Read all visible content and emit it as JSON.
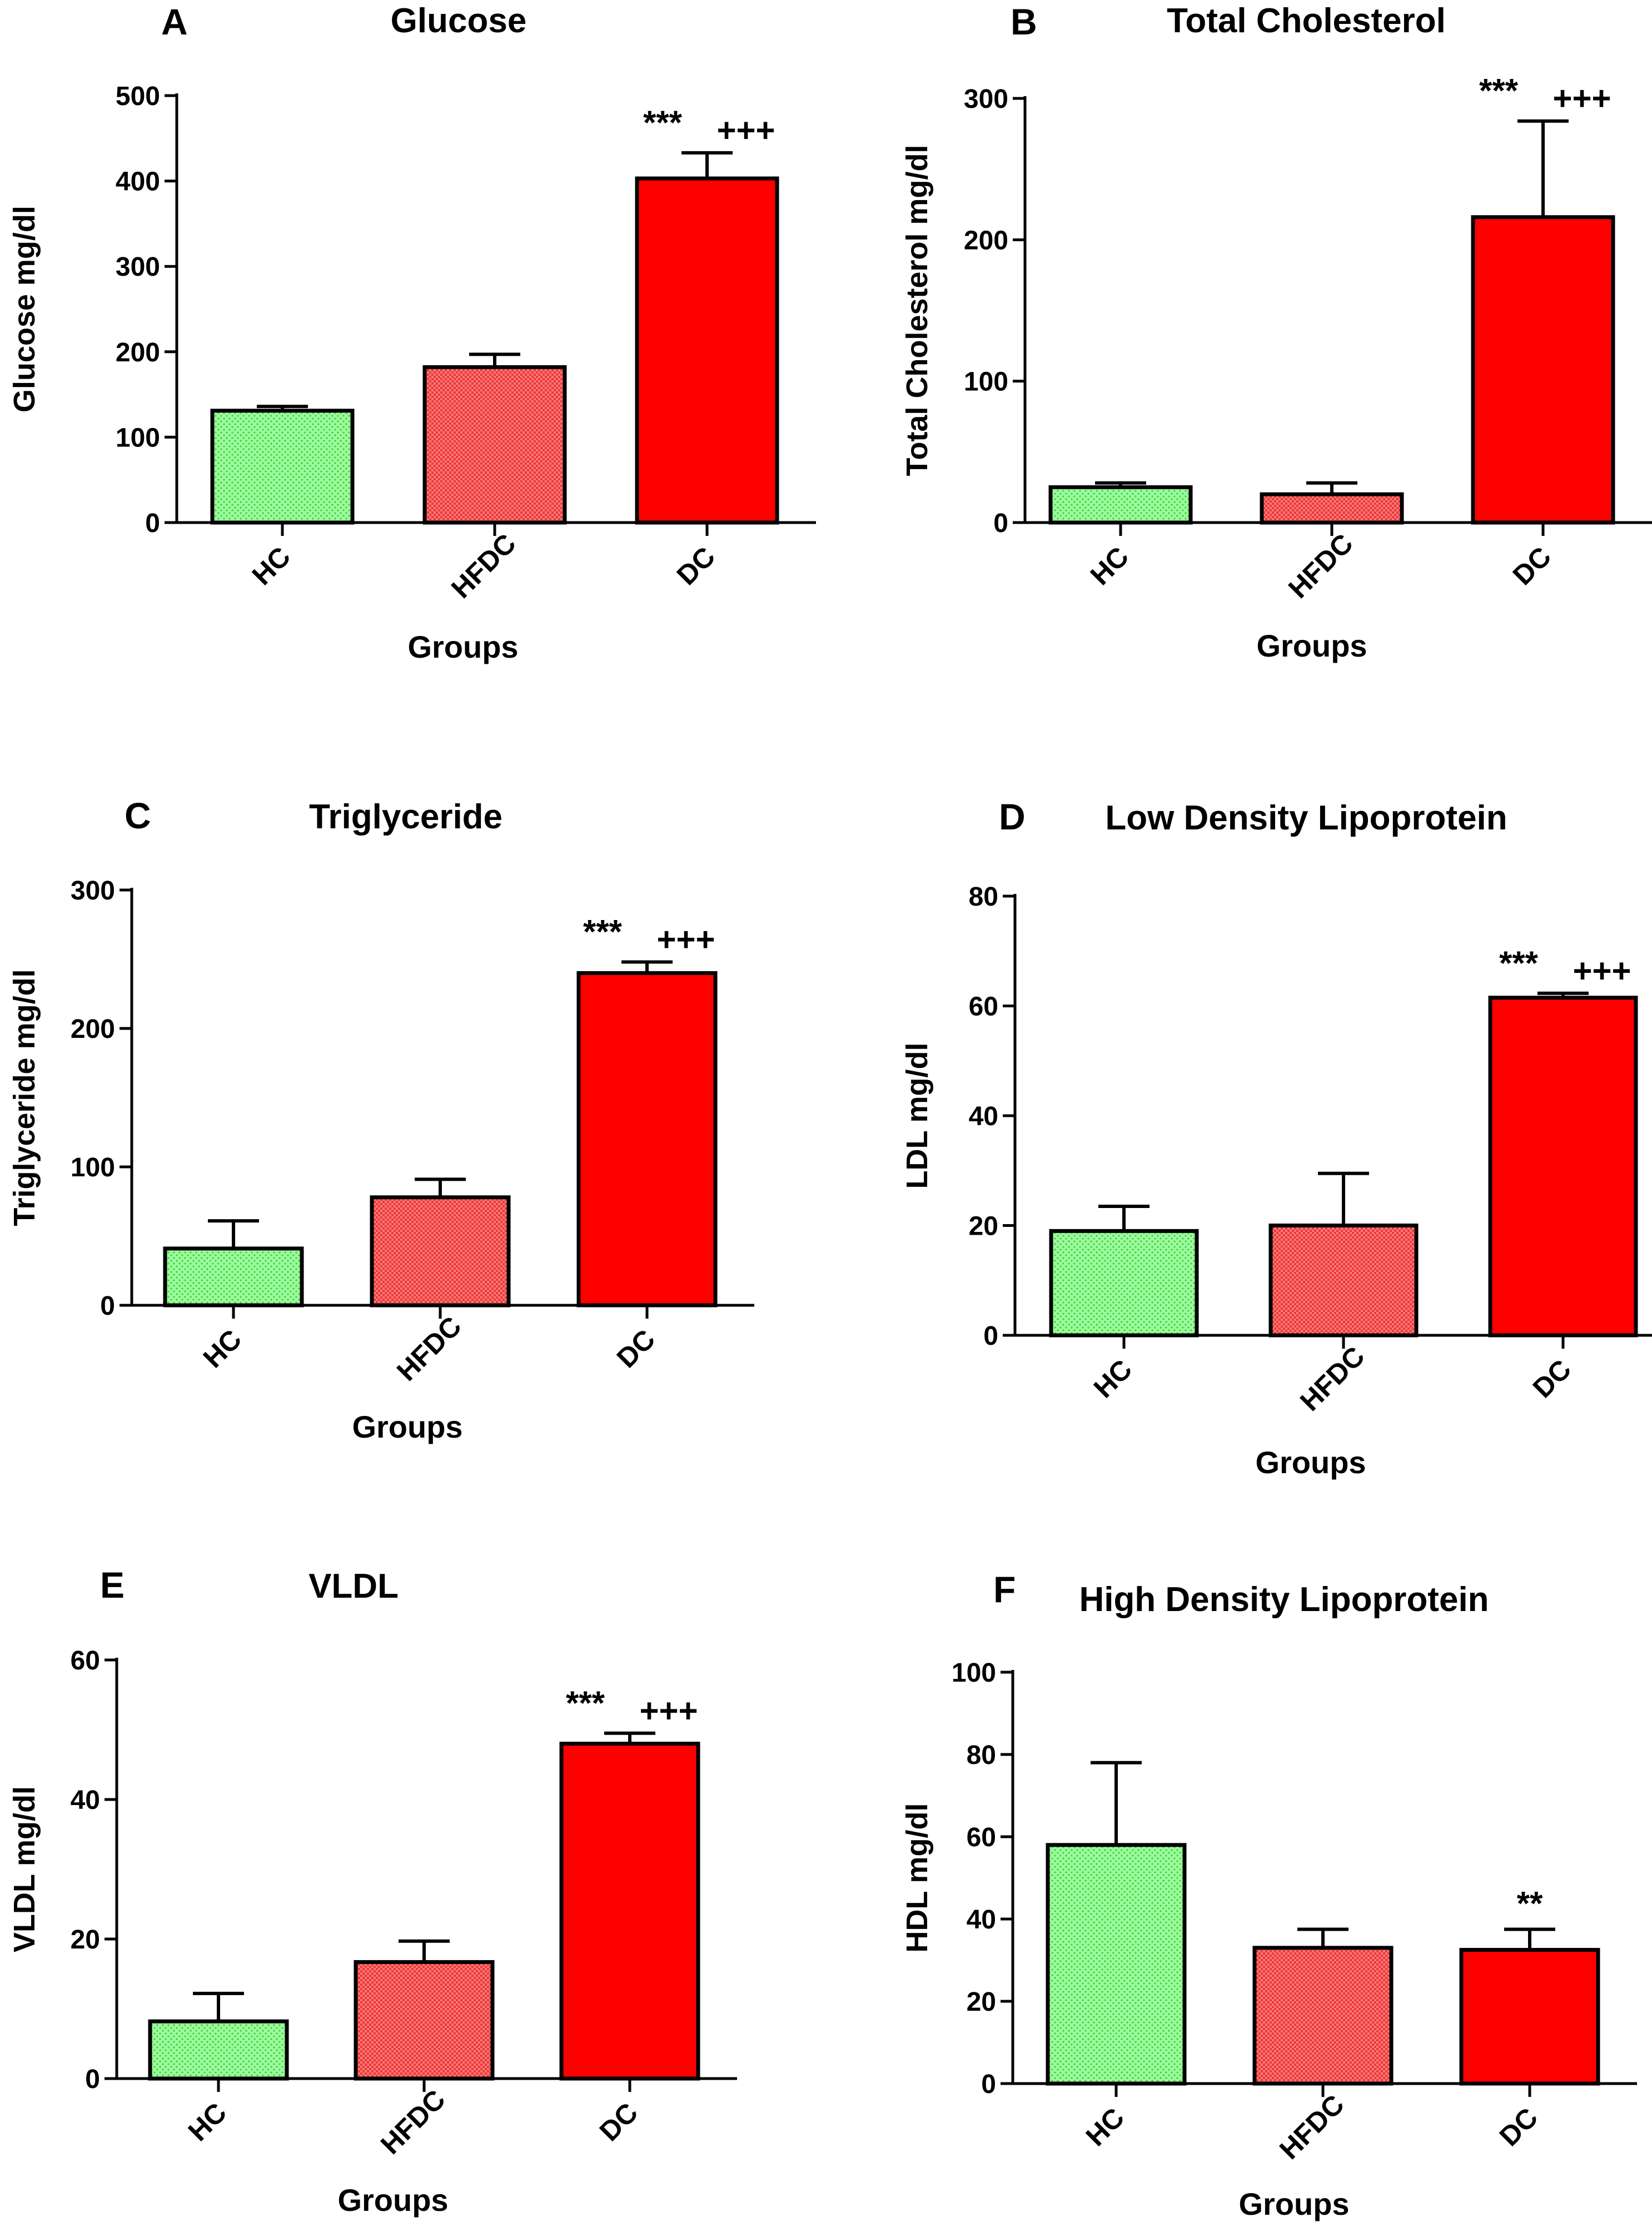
{
  "figure": {
    "description_title": ""
  },
  "chart_data": [
    {
      "type": "bar",
      "panel_letter": "A",
      "title": "Glucose",
      "xlabel": "Groups",
      "ylabel": "Glucose mg/dl",
      "categories": [
        "HC",
        "HFDC",
        "DC"
      ],
      "values": [
        131,
        182,
        403
      ],
      "errors": [
        5,
        15,
        30
      ],
      "ylim": [
        0,
        500
      ],
      "yticks": [
        0,
        100,
        200,
        300,
        400,
        500
      ],
      "annotations": [
        {
          "bar": 2,
          "stars": "***",
          "plus": "+++"
        }
      ]
    },
    {
      "type": "bar",
      "panel_letter": "B",
      "title": "Total Cholesterol",
      "xlabel": "Groups",
      "ylabel": "Total Cholesterol mg/dl",
      "categories": [
        "HC",
        "HFDC",
        "DC"
      ],
      "values": [
        25,
        20,
        216
      ],
      "errors": [
        3,
        8,
        68
      ],
      "ylim": [
        0,
        300
      ],
      "yticks": [
        0,
        100,
        200,
        300
      ],
      "annotations": [
        {
          "bar": 2,
          "stars": "***",
          "plus": "+++"
        }
      ]
    },
    {
      "type": "bar",
      "panel_letter": "C",
      "title": "Triglyceride",
      "xlabel": "Groups",
      "ylabel": "Triglyceride mg/dl",
      "categories": [
        "HC",
        "HFDC",
        "DC"
      ],
      "values": [
        41,
        78,
        240
      ],
      "errors": [
        20,
        13,
        8
      ],
      "ylim": [
        0,
        300
      ],
      "yticks": [
        0,
        100,
        200,
        300
      ],
      "annotations": [
        {
          "bar": 2,
          "stars": "***",
          "plus": "+++"
        }
      ]
    },
    {
      "type": "bar",
      "panel_letter": "D",
      "title": "Low Density Lipoprotein",
      "xlabel": "Groups",
      "ylabel": "LDL mg/dl",
      "categories": [
        "HC",
        "HFDC",
        "DC"
      ],
      "values": [
        19,
        20,
        61.5
      ],
      "errors": [
        4.5,
        9.5,
        0.8
      ],
      "ylim": [
        0,
        80
      ],
      "yticks": [
        0,
        20,
        40,
        60,
        80
      ],
      "annotations": [
        {
          "bar": 2,
          "stars": "***",
          "plus": "+++"
        }
      ]
    },
    {
      "type": "bar",
      "panel_letter": "E",
      "title": "VLDL",
      "xlabel": "Groups",
      "ylabel": "VLDL mg/dl",
      "categories": [
        "HC",
        "HFDC",
        "DC"
      ],
      "values": [
        8.2,
        16.7,
        48
      ],
      "errors": [
        4,
        3,
        1.5
      ],
      "ylim": [
        0,
        60
      ],
      "yticks": [
        0,
        20,
        40,
        60
      ],
      "annotations": [
        {
          "bar": 2,
          "stars": "***",
          "plus": "+++"
        }
      ]
    },
    {
      "type": "bar",
      "panel_letter": "F",
      "title": "High Density Lipoprotein",
      "xlabel": "Groups",
      "ylabel": "HDL mg/dl",
      "categories": [
        "HC",
        "HFDC",
        "DC"
      ],
      "values": [
        58,
        33,
        32.5
      ],
      "errors": [
        20,
        4.5,
        5
      ],
      "ylim": [
        0,
        100
      ],
      "yticks": [
        0,
        20,
        40,
        60,
        80,
        100
      ],
      "annotations": [
        {
          "bar": 2,
          "stars": "**",
          "plus": ""
        }
      ]
    }
  ],
  "colors": {
    "hc": "#99ff99",
    "hfdc": "#ff6666",
    "dc": "#ff0000",
    "axis": "#000000"
  }
}
